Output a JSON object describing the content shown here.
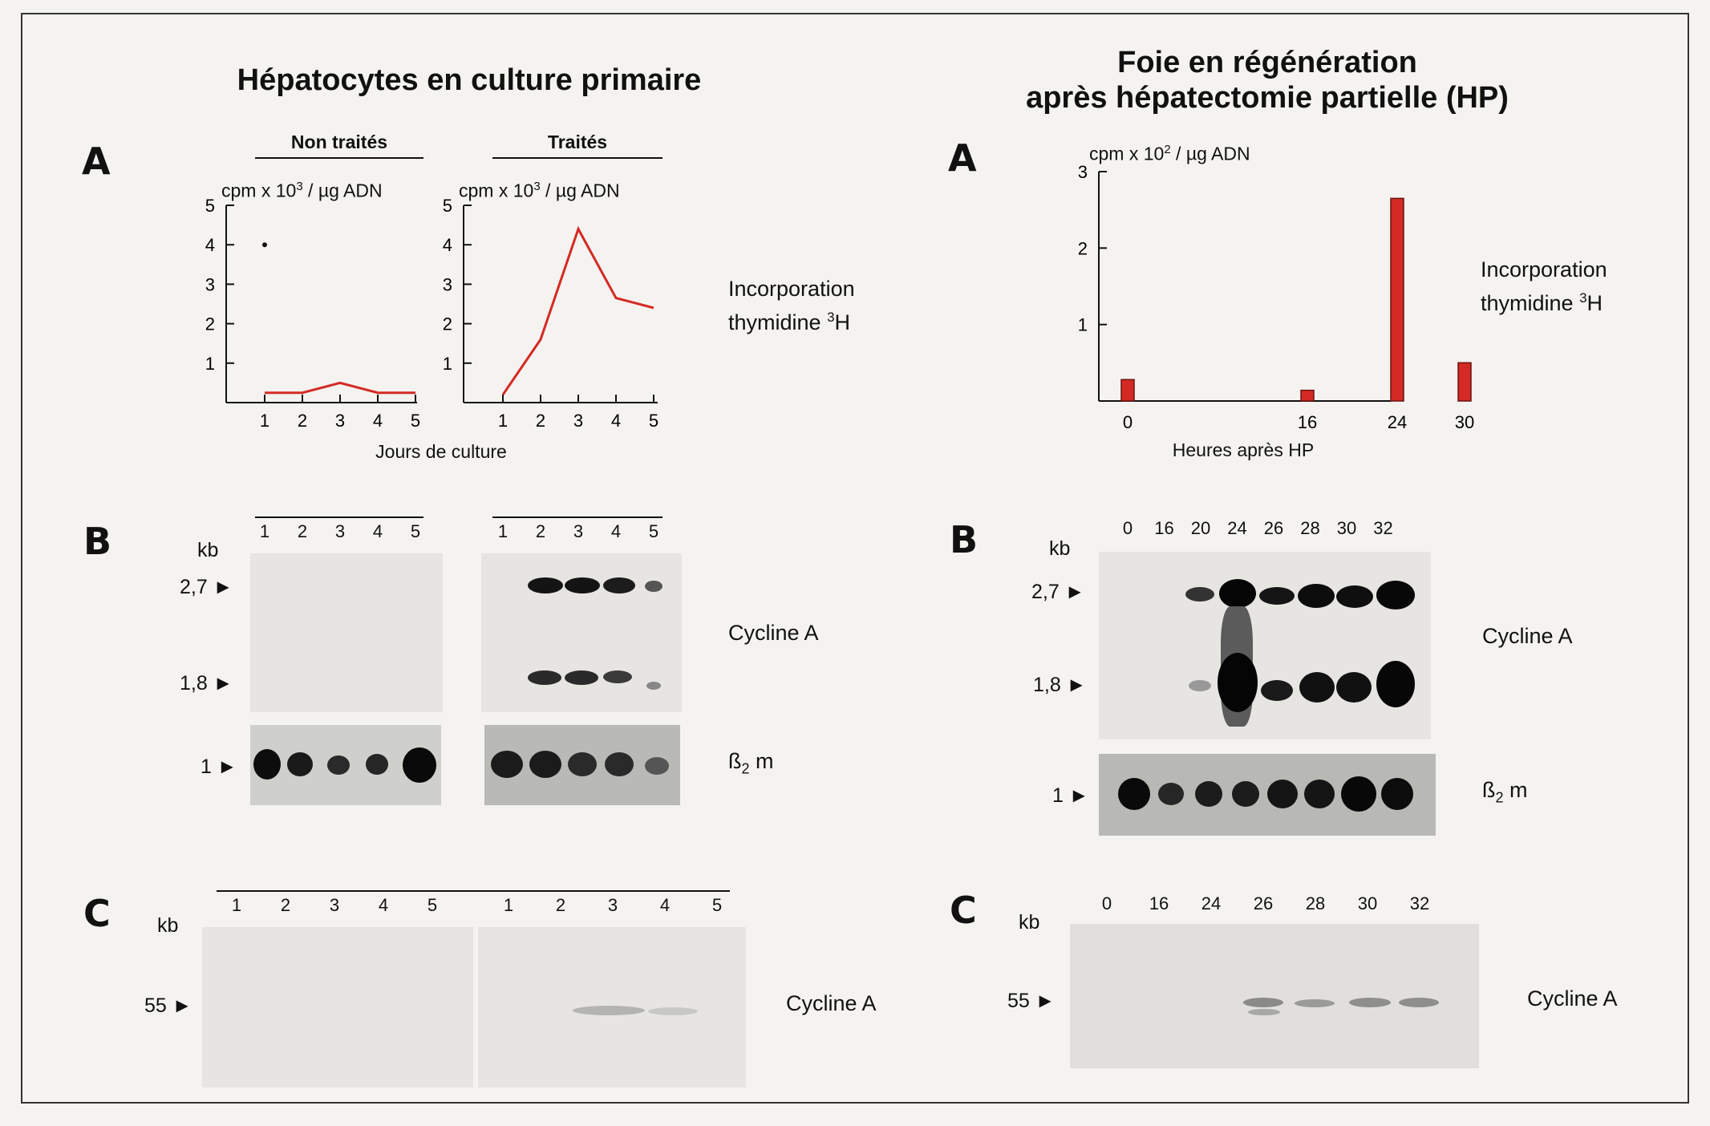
{
  "left": {
    "title": "Hépatocytes en culture primaire",
    "panelA": {
      "letter": "A",
      "groups": [
        "Non traités",
        "Traités"
      ],
      "ylabel": "cpm x 10",
      "ylabel_exp": "3",
      "ylabel_unit": " / µg ADN",
      "xlabel": "Jours de culture",
      "side_line1": "Incorporation",
      "side_line2": "thymidine ",
      "side_exp": "3",
      "side_end": "H"
    },
    "panelB": {
      "letter": "B",
      "kb": "kb",
      "markers": [
        "2,7",
        "1,8",
        "1"
      ],
      "lanes": [
        "1",
        "2",
        "3",
        "4",
        "5"
      ],
      "label1": "Cycline A",
      "label2_main": "ß",
      "label2_sub": "2",
      "label2_end": " m"
    },
    "panelC": {
      "letter": "C",
      "kb": "kb",
      "marker": "55",
      "lanes": [
        "1",
        "2",
        "3",
        "4",
        "5"
      ],
      "label": "Cycline A"
    }
  },
  "right": {
    "title_line1": "Foie en régénération",
    "title_line2": "après hépatectomie partielle (HP)",
    "panelA": {
      "letter": "A",
      "ylabel": "cpm x 10",
      "ylabel_exp": "2",
      "ylabel_unit": " / µg ADN",
      "xlabel": "Heures après HP",
      "side_line1": "Incorporation",
      "side_line2": "thymidine ",
      "side_exp": "3",
      "side_end": "H"
    },
    "panelB": {
      "letter": "B",
      "kb": "kb",
      "markers": [
        "2,7",
        "1,8",
        "1"
      ],
      "lanes": [
        "0",
        "16",
        "20",
        "24",
        "26",
        "28",
        "30",
        "32"
      ],
      "label1": "Cycline A",
      "label2_main": "ß",
      "label2_sub": "2",
      "label2_end": " m"
    },
    "panelC": {
      "letter": "C",
      "kb": "kb",
      "marker": "55",
      "lanes": [
        "0",
        "16",
        "24",
        "26",
        "28",
        "30",
        "32"
      ],
      "label": "Cycline A"
    }
  },
  "chart_data": [
    {
      "type": "line",
      "group": "Non traités",
      "x": [
        1,
        2,
        3,
        4,
        5
      ],
      "values": [
        0.25,
        0.25,
        0.5,
        0.25,
        0.25
      ],
      "ylim": [
        0,
        5
      ],
      "yticks": [
        1,
        2,
        3,
        4,
        5
      ],
      "color": "#d42a25",
      "stray_point": [
        1,
        4.0
      ]
    },
    {
      "type": "line",
      "group": "Traités",
      "x": [
        1,
        2,
        3,
        4,
        5
      ],
      "values": [
        0.2,
        1.6,
        4.4,
        2.65,
        2.4
      ],
      "ylim": [
        0,
        5
      ],
      "yticks": [
        1,
        2,
        3,
        4,
        5
      ],
      "color": "#d42a25"
    },
    {
      "type": "bar",
      "categories": [
        "0",
        "16",
        "24",
        "30"
      ],
      "x": [
        0,
        16,
        24,
        30
      ],
      "values": [
        0.28,
        0.14,
        2.65,
        0.5
      ],
      "ylim": [
        0,
        3
      ],
      "yticks": [
        1,
        2,
        3
      ],
      "color": "#d42a25"
    }
  ]
}
